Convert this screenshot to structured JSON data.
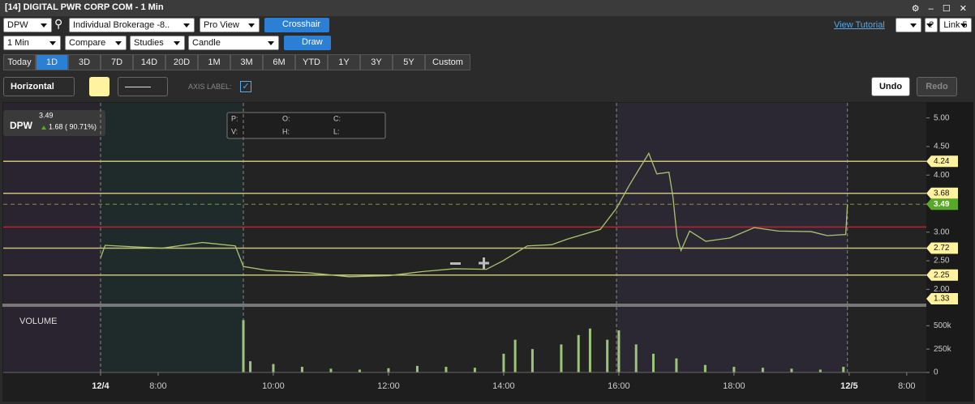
{
  "window": {
    "title": "[14] DIGITAL PWR CORP COM - 1 Min"
  },
  "toolbar": {
    "symbol": "DPW",
    "account": "Individual Brokerage -8..",
    "view": "Pro View",
    "crosshair": "Crosshair",
    "tutorial": "View Tutorial",
    "help": "?",
    "link": "Link 5",
    "interval": "1 Min",
    "compare": "Compare",
    "studies": "Studies",
    "chart_style": "Candle",
    "draw": "Draw",
    "periods": [
      "Today",
      "1D",
      "3D",
      "7D",
      "14D",
      "20D",
      "1M",
      "3M",
      "6M",
      "YTD",
      "1Y",
      "3Y",
      "5Y",
      "Custom"
    ],
    "active_period_index": 1,
    "draw_tool": "Horizontal",
    "axis_label": "AXIS LABEL:",
    "undo": "Undo",
    "redo": "Redo"
  },
  "legend": {
    "symbol": "DPW",
    "change": "1.68 ( 90.71%)"
  },
  "info_box": [
    "P:",
    "O:",
    "C:",
    "V:",
    "H:",
    "L:"
  ],
  "chart_data": [
    {
      "type": "line",
      "color": "#a9c46e",
      "x": [
        7.0,
        7.08,
        7.65,
        8.07,
        8.77,
        9.34,
        9.48,
        9.9,
        10.61,
        11.31,
        12.01,
        12.58,
        13.14,
        13.7,
        13.99,
        14.41,
        14.83,
        15.11,
        15.68,
        15.96,
        16.17,
        16.38,
        16.52,
        16.66,
        16.87,
        16.94,
        17.01,
        17.08,
        17.23,
        17.51,
        17.93,
        18.35,
        18.77,
        19.34,
        19.62,
        19.94,
        19.97
      ],
      "values": [
        2.55,
        2.77,
        2.74,
        2.72,
        2.82,
        2.76,
        2.4,
        2.33,
        2.29,
        2.22,
        2.24,
        2.31,
        2.36,
        2.35,
        2.5,
        2.76,
        2.78,
        2.88,
        3.05,
        3.42,
        3.8,
        4.15,
        4.38,
        4.02,
        4.05,
        3.62,
        2.92,
        2.68,
        3.02,
        2.84,
        2.9,
        3.08,
        3.02,
        3.01,
        2.94,
        2.96,
        3.49
      ],
      "xlim": [
        5.31,
        21.34
      ],
      "ylim": [
        1.75,
        5.25
      ],
      "yticks": [
        {
          "value": 2,
          "label": "2.00"
        },
        {
          "value": 2.5,
          "label": "2.50"
        },
        {
          "value": 3,
          "label": "3.00"
        },
        {
          "value": 3.5,
          "label": "3.50"
        },
        {
          "value": 4,
          "label": "4.00"
        },
        {
          "value": 4.5,
          "label": "4.50"
        },
        {
          "value": 5,
          "label": "5.00"
        }
      ],
      "session_lines": [
        7,
        9.48,
        15.96,
        19.97
      ],
      "levels": [
        4.24,
        3.68,
        2.72,
        2.25,
        1.33
      ],
      "level_color": "#c9c07a",
      "reference_line": {
        "value": 3.09,
        "color": "#b8262c"
      },
      "last": 3.49,
      "last_color": "#5aa82a"
    },
    {
      "type": "bar",
      "title": "VOLUME",
      "color": "#9cc47a",
      "x": [
        9.48,
        9.6,
        10.0,
        10.5,
        11.0,
        11.5,
        12.0,
        12.5,
        13.0,
        13.5,
        14.0,
        14.2,
        14.5,
        15.0,
        15.3,
        15.5,
        15.8,
        16.0,
        16.3,
        16.6,
        17.0,
        17.5,
        18.0,
        18.5,
        19.0,
        19.5,
        19.9
      ],
      "values": [
        560000,
        120000,
        90000,
        60000,
        40000,
        30000,
        45000,
        70000,
        60000,
        50000,
        200000,
        350000,
        250000,
        300000,
        400000,
        470000,
        350000,
        450000,
        300000,
        200000,
        150000,
        80000,
        60000,
        50000,
        40000,
        30000,
        60000
      ],
      "xlim": [
        5.31,
        21.34
      ],
      "ylim": [
        0,
        650000
      ],
      "yticks": [
        0,
        {
          "value": 250000,
          "label": "250k"
        },
        {
          "value": 500000,
          "label": "500k"
        }
      ],
      "xticks": [
        {
          "value": 7,
          "label": "12/4"
        },
        {
          "value": 8,
          "label": "8:00"
        },
        {
          "value": 10,
          "label": "10:00"
        },
        {
          "value": 12,
          "label": "12:00"
        },
        {
          "value": 14,
          "label": "14:00"
        },
        {
          "value": 16,
          "label": "16:00"
        },
        {
          "value": 18,
          "label": "18:00"
        },
        {
          "value": 20,
          "label": "12/5"
        },
        {
          "value": 21,
          "label": "8:00"
        }
      ]
    }
  ]
}
